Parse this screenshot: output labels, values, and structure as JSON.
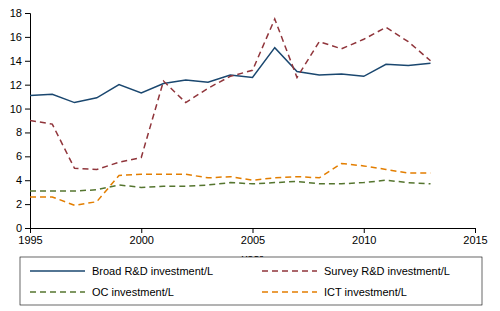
{
  "chart_data": {
    "type": "line",
    "x_label": "year",
    "x": [
      1995,
      1996,
      1997,
      1998,
      1999,
      2000,
      2001,
      2002,
      2003,
      2004,
      2005,
      2006,
      2007,
      2008,
      2009,
      2010,
      2011,
      2012,
      2013
    ],
    "xlim": [
      1995,
      2015
    ],
    "xticks": [
      1995,
      2000,
      2005,
      2010,
      2015
    ],
    "ylim": [
      0,
      18
    ],
    "yticks": [
      0,
      2,
      4,
      6,
      8,
      10,
      12,
      14,
      16,
      18
    ],
    "grid": false,
    "legend": "bottom",
    "series": [
      {
        "name": "Broad R&D investment/L",
        "color": "#1a476f",
        "line_style": "solid",
        "values": [
          11.1,
          11.2,
          10.5,
          10.9,
          12.0,
          11.3,
          12.1,
          12.4,
          12.2,
          12.8,
          12.6,
          15.1,
          13.1,
          12.8,
          12.9,
          12.7,
          13.7,
          13.6,
          13.8
        ]
      },
      {
        "name": "Survey R&D investment/L",
        "color": "#90353b",
        "line_style": "dash",
        "values": [
          9.0,
          8.7,
          5.0,
          4.9,
          5.5,
          5.9,
          12.3,
          10.5,
          11.7,
          12.7,
          13.2,
          17.5,
          12.6,
          15.6,
          15.0,
          15.8,
          16.8,
          15.6,
          14.0
        ]
      },
      {
        "name": "OC investment/L",
        "color": "#55752f",
        "line_style": "dash",
        "values": [
          3.1,
          3.1,
          3.1,
          3.2,
          3.6,
          3.4,
          3.5,
          3.5,
          3.6,
          3.8,
          3.7,
          3.8,
          3.9,
          3.7,
          3.7,
          3.8,
          4.0,
          3.8,
          3.7
        ]
      },
      {
        "name": "ICT investment/L",
        "color": "#e37e00",
        "line_style": "dash",
        "values": [
          2.6,
          2.6,
          1.9,
          2.2,
          4.4,
          4.5,
          4.5,
          4.5,
          4.2,
          4.3,
          4.0,
          4.2,
          4.3,
          4.2,
          5.4,
          5.2,
          4.9,
          4.6,
          4.6
        ]
      }
    ]
  }
}
